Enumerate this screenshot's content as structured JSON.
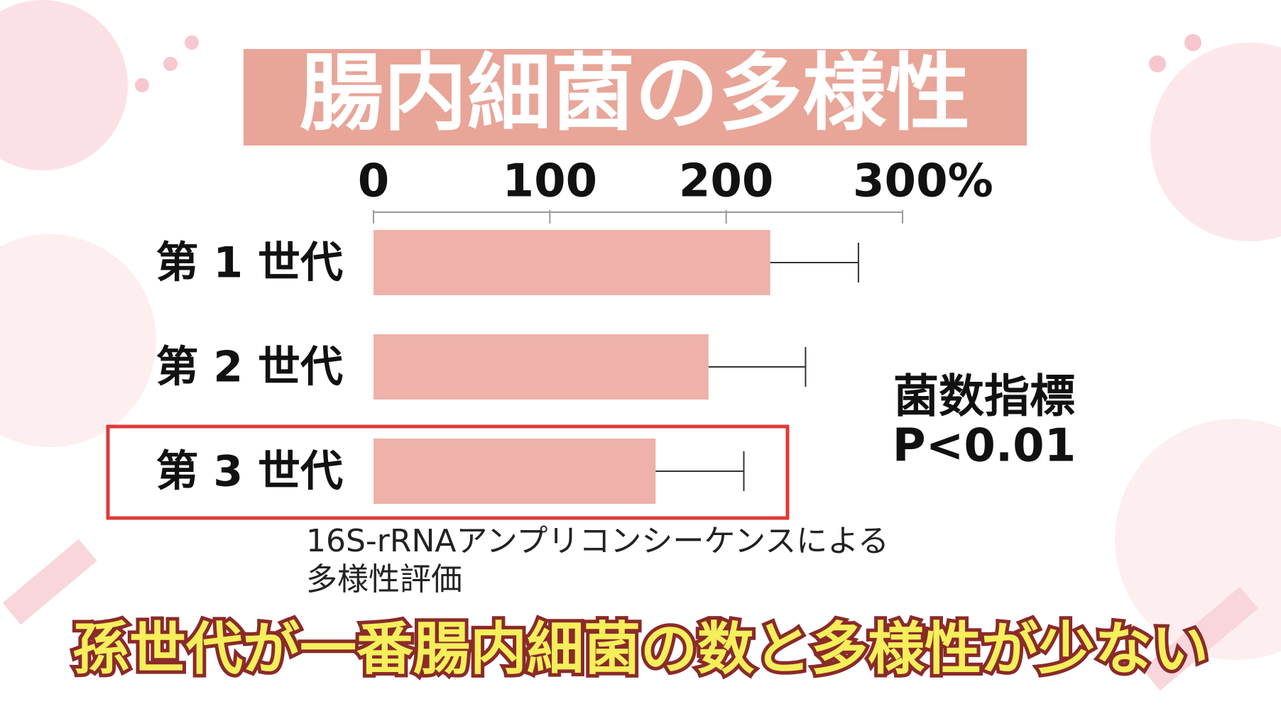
{
  "chart_data": {
    "type": "bar",
    "orientation": "horizontal",
    "title": "腸内細菌の多様性",
    "categories": [
      "第 1 世代",
      "第 2 世代",
      "第 3 世代"
    ],
    "values": [
      225,
      190,
      160
    ],
    "errors": [
      50,
      55,
      50
    ],
    "color": "#eeb2aa",
    "xlim": [
      0,
      300
    ],
    "xticks": [
      0,
      100,
      200,
      {
        "value": 300,
        "label": "300%"
      }
    ],
    "annotation": [
      "菌数指標",
      "P<0.01"
    ],
    "note": [
      "16S-rRNAアンプリコンシーケンスによる",
      "多様性評価"
    ],
    "caption": "孫世代が一番腸内細菌の数と多様性が少ない"
  }
}
